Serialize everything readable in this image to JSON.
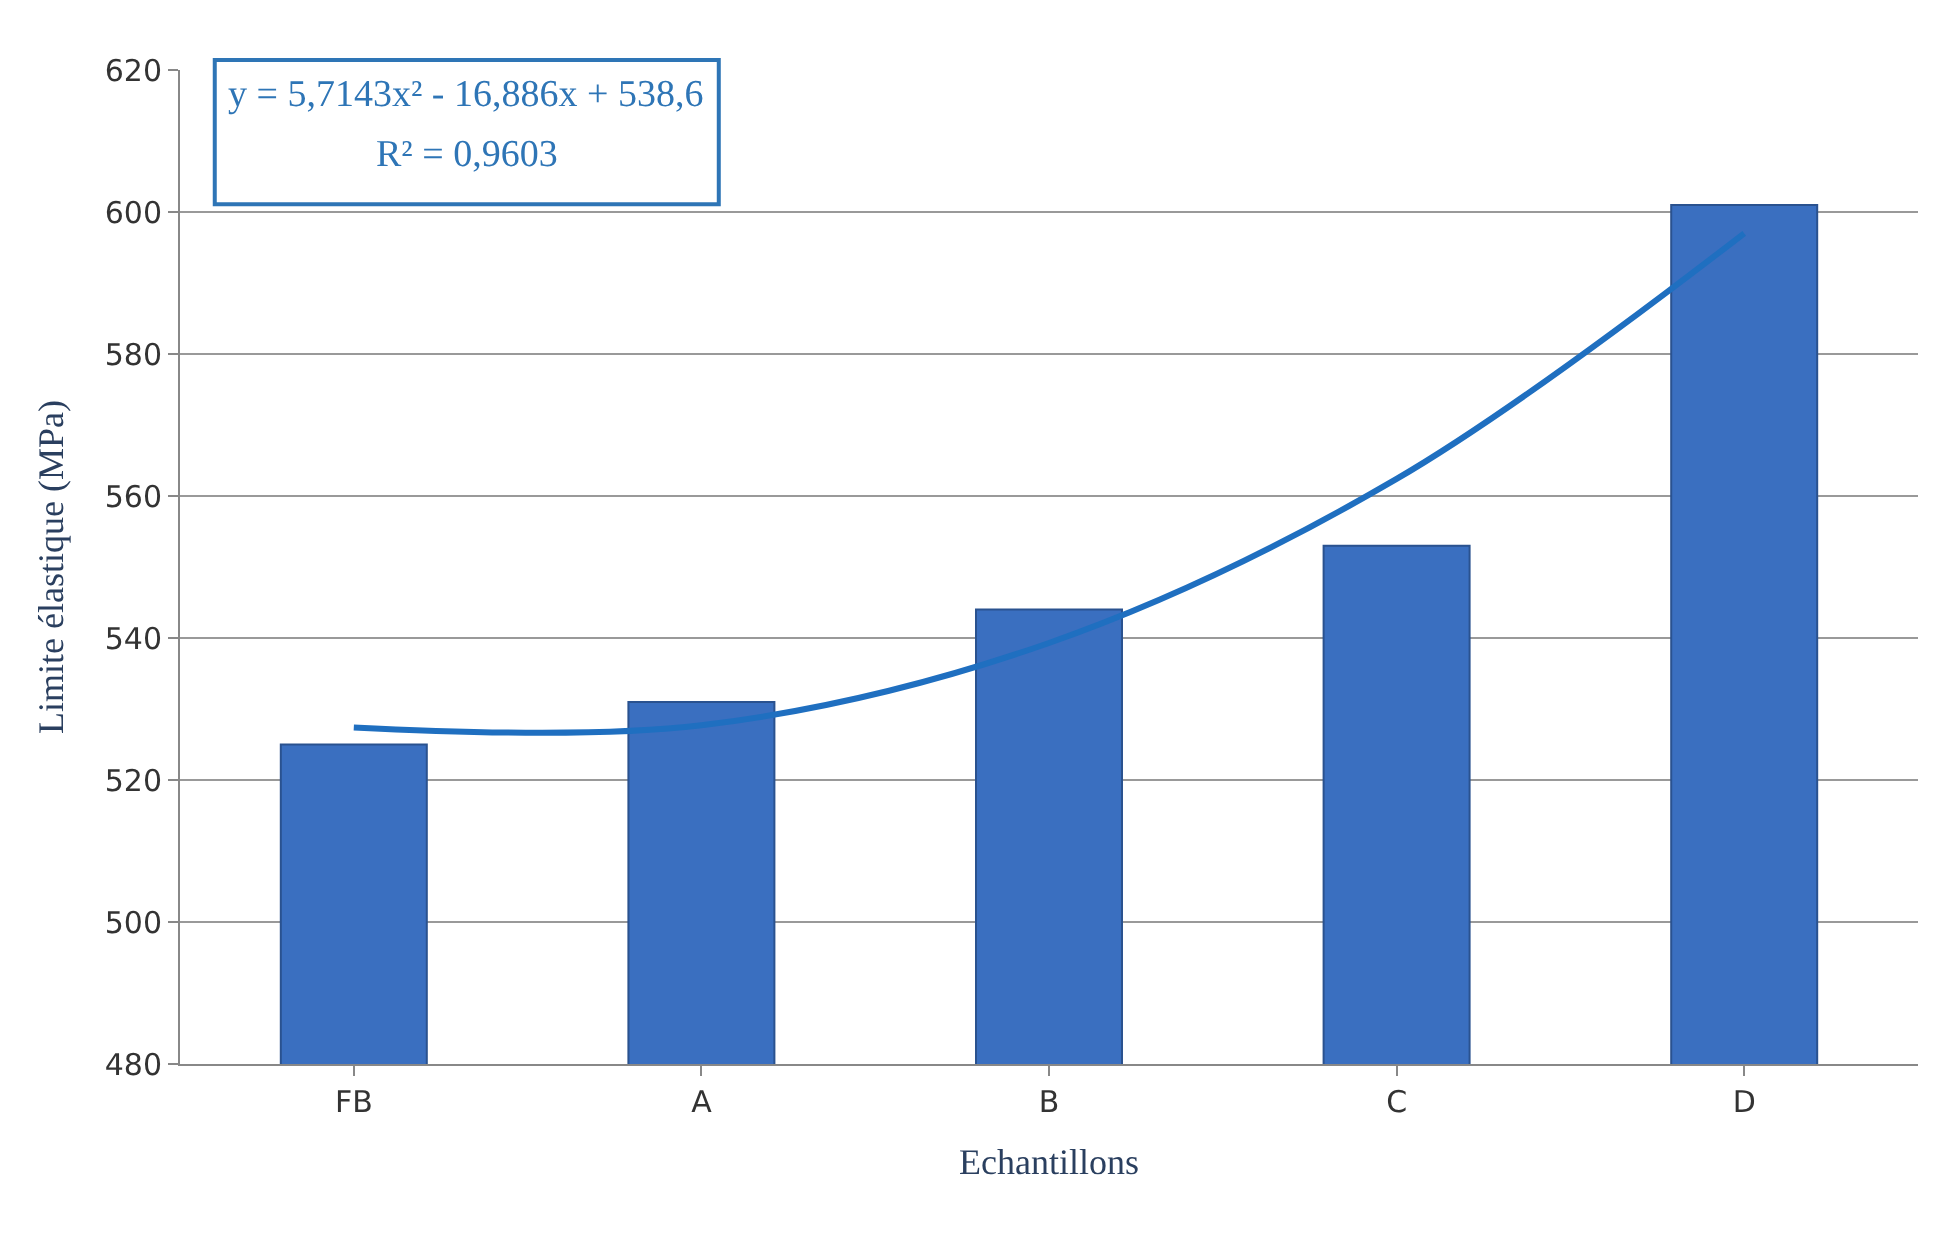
{
  "chart_data": {
    "type": "bar",
    "xlabel": "Echantillons",
    "ylabel": "Limite élastique (MPa)",
    "categories": [
      "FB",
      "A",
      "B",
      "C",
      "D"
    ],
    "series": [
      {
        "color": "#3a6fc0",
        "values": [
          525,
          531,
          544,
          553,
          601
        ]
      },
      {
        "type": "line",
        "color": "#1f6fc0",
        "values": [
          527.4,
          527.7,
          539.3,
          562.4,
          597.0
        ]
      }
    ],
    "ylim": [
      480,
      620
    ],
    "yticks": [
      480,
      500,
      520,
      540,
      560,
      580,
      600,
      620
    ],
    "grid": "y",
    "annotations": [
      "y = 5,7143x² - 16,886x + 538,6",
      "R² = 0,9603"
    ]
  }
}
